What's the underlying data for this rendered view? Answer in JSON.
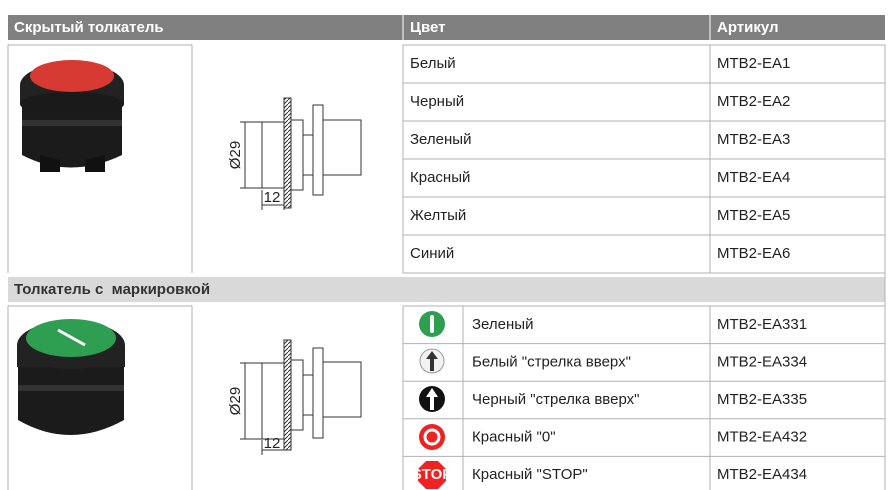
{
  "header": {
    "title": "Скрытый толкатель",
    "color": "Цвет",
    "article": "Артикул"
  },
  "section1": {
    "rows": [
      [
        "Белый",
        "MTB2-EA1"
      ],
      [
        "Черный",
        "MTB2-EA2"
      ],
      [
        "Зеленый",
        "MTB2-EA3"
      ],
      [
        "Красный",
        "MTB2-EA4"
      ],
      [
        "Желтый",
        "MTB2-EA5"
      ],
      [
        "Синий",
        "MTB2-EA6"
      ]
    ]
  },
  "section2": {
    "title": "Толкатель с  маркировкой",
    "rows": [
      [
        "Зеленый",
        "MTB2-EA331"
      ],
      [
        "Белый \"стрелка вверх\"",
        "MTB2-EA334"
      ],
      [
        "Черный \"стрелка вверх\"",
        "MTB2-EA335"
      ],
      [
        "Красный \"0\"",
        "MTB2-EA432"
      ],
      [
        "Красный \"STOP\"",
        "MTB2-EA434"
      ]
    ],
    "stop_icon": "STOP"
  },
  "drawing": {
    "diameter": "Ø29",
    "length": "12"
  }
}
